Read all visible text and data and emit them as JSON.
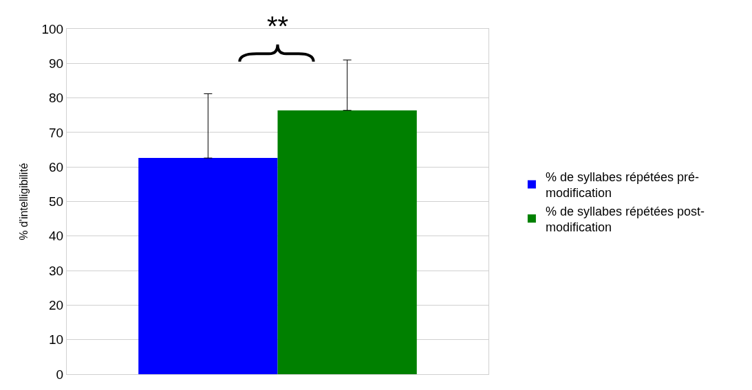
{
  "chart_data": {
    "type": "bar",
    "ylabel": "% d'intelligibilité",
    "categories": [
      null
    ],
    "series": [
      {
        "name": "% de syllabes répétées pré-modification",
        "color": "#0000ff",
        "values": [
          62.6
        ],
        "errors": [
          [
            62.6,
            81.2
          ]
        ]
      },
      {
        "name": "% de syllabes répétées post-modification",
        "color": "#008000",
        "values": [
          76.4
        ],
        "errors": [
          [
            76.4,
            91.0
          ]
        ]
      }
    ],
    "ylim": [
      0,
      100
    ],
    "yticks": [
      0,
      10,
      20,
      30,
      40,
      50,
      60,
      70,
      80,
      90,
      100
    ],
    "grid": "y",
    "legend": "right",
    "annotations": [
      "**"
    ]
  }
}
